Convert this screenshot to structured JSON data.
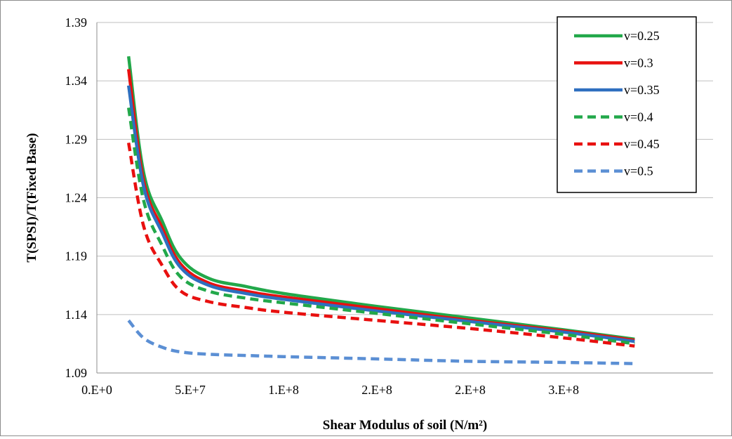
{
  "chart_data": {
    "type": "line",
    "title": "",
    "xlabel": "Shear Modulus of soil (N/m²)",
    "ylabel": "T(SPSI)/T(Fixed Base)",
    "xlim": [
      0,
      330000000
    ],
    "ylim": [
      1.09,
      1.39
    ],
    "x_ticks": [
      {
        "value": 0,
        "label": "0.E+0"
      },
      {
        "value": 50000000,
        "label": "5.E+7"
      },
      {
        "value": 100000000,
        "label": "1.E+8"
      },
      {
        "value": 150000000,
        "label": "2.E+8"
      },
      {
        "value": 200000000,
        "label": "2.E+8"
      },
      {
        "value": 250000000,
        "label": "3.E+8"
      }
    ],
    "y_ticks": [
      {
        "value": 1.09,
        "label": "1.09"
      },
      {
        "value": 1.14,
        "label": "1.14"
      },
      {
        "value": 1.19,
        "label": "1.19"
      },
      {
        "value": 1.24,
        "label": "1.24"
      },
      {
        "value": 1.29,
        "label": "1.29"
      },
      {
        "value": 1.34,
        "label": "1.34"
      },
      {
        "value": 1.39,
        "label": "1.39"
      }
    ],
    "grid": "horizontal",
    "legend_position": "top-right",
    "x": [
      17000000,
      25000000,
      35000000,
      45000000,
      60000000,
      80000000,
      100000000,
      150000000,
      200000000,
      250000000,
      288000000
    ],
    "series": [
      {
        "name": "v=0.25",
        "color": "#22a84a",
        "dash": "solid",
        "values": [
          1.361,
          1.262,
          1.22,
          1.188,
          1.171,
          1.164,
          1.158,
          1.147,
          1.137,
          1.127,
          1.119
        ]
      },
      {
        "name": "v=0.3",
        "color": "#e8100f",
        "dash": "solid",
        "values": [
          1.35,
          1.255,
          1.214,
          1.183,
          1.167,
          1.16,
          1.155,
          1.145,
          1.135,
          1.126,
          1.118
        ]
      },
      {
        "name": "v=0.35",
        "color": "#2e6fbf",
        "dash": "solid",
        "values": [
          1.336,
          1.25,
          1.21,
          1.18,
          1.165,
          1.158,
          1.153,
          1.143,
          1.134,
          1.125,
          1.117
        ]
      },
      {
        "name": "v=0.4",
        "color": "#22a84a",
        "dash": "dashed",
        "values": [
          1.317,
          1.238,
          1.199,
          1.172,
          1.16,
          1.154,
          1.15,
          1.141,
          1.132,
          1.123,
          1.115
        ]
      },
      {
        "name": "v=0.45",
        "color": "#e8100f",
        "dash": "dashed",
        "values": [
          1.287,
          1.216,
          1.182,
          1.16,
          1.151,
          1.146,
          1.142,
          1.135,
          1.128,
          1.12,
          1.113
        ]
      },
      {
        "name": "v=0.5",
        "color": "#5b8fd4",
        "dash": "dashed",
        "values": [
          1.135,
          1.12,
          1.112,
          1.108,
          1.106,
          1.105,
          1.104,
          1.102,
          1.1,
          1.099,
          1.098
        ]
      }
    ]
  }
}
